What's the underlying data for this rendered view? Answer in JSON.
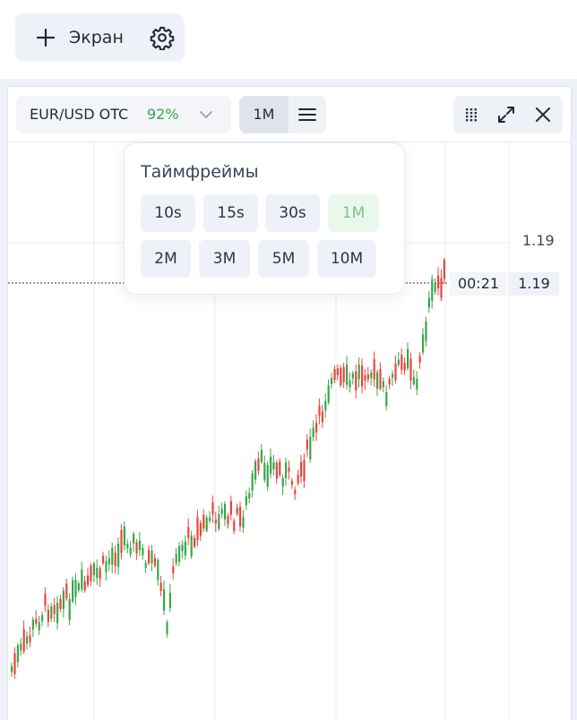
{
  "toolbar": {
    "screen_button_label": "Экран"
  },
  "chart_header": {
    "pair": "EUR/USD OTC",
    "payout": "92%",
    "timeframe": "1M"
  },
  "chart": {
    "price_level_label": "1.19",
    "timer": "00:21",
    "current_price": "1.19"
  },
  "timeframes_popup": {
    "title": "Таймфреймы",
    "options": [
      "10s",
      "15s",
      "30s",
      "1M",
      "2M",
      "3M",
      "5M",
      "10M"
    ],
    "selected": "1M"
  },
  "colors": {
    "up": "#3aa64a",
    "down": "#e8453c",
    "accent_green": "#3aa64a"
  }
}
